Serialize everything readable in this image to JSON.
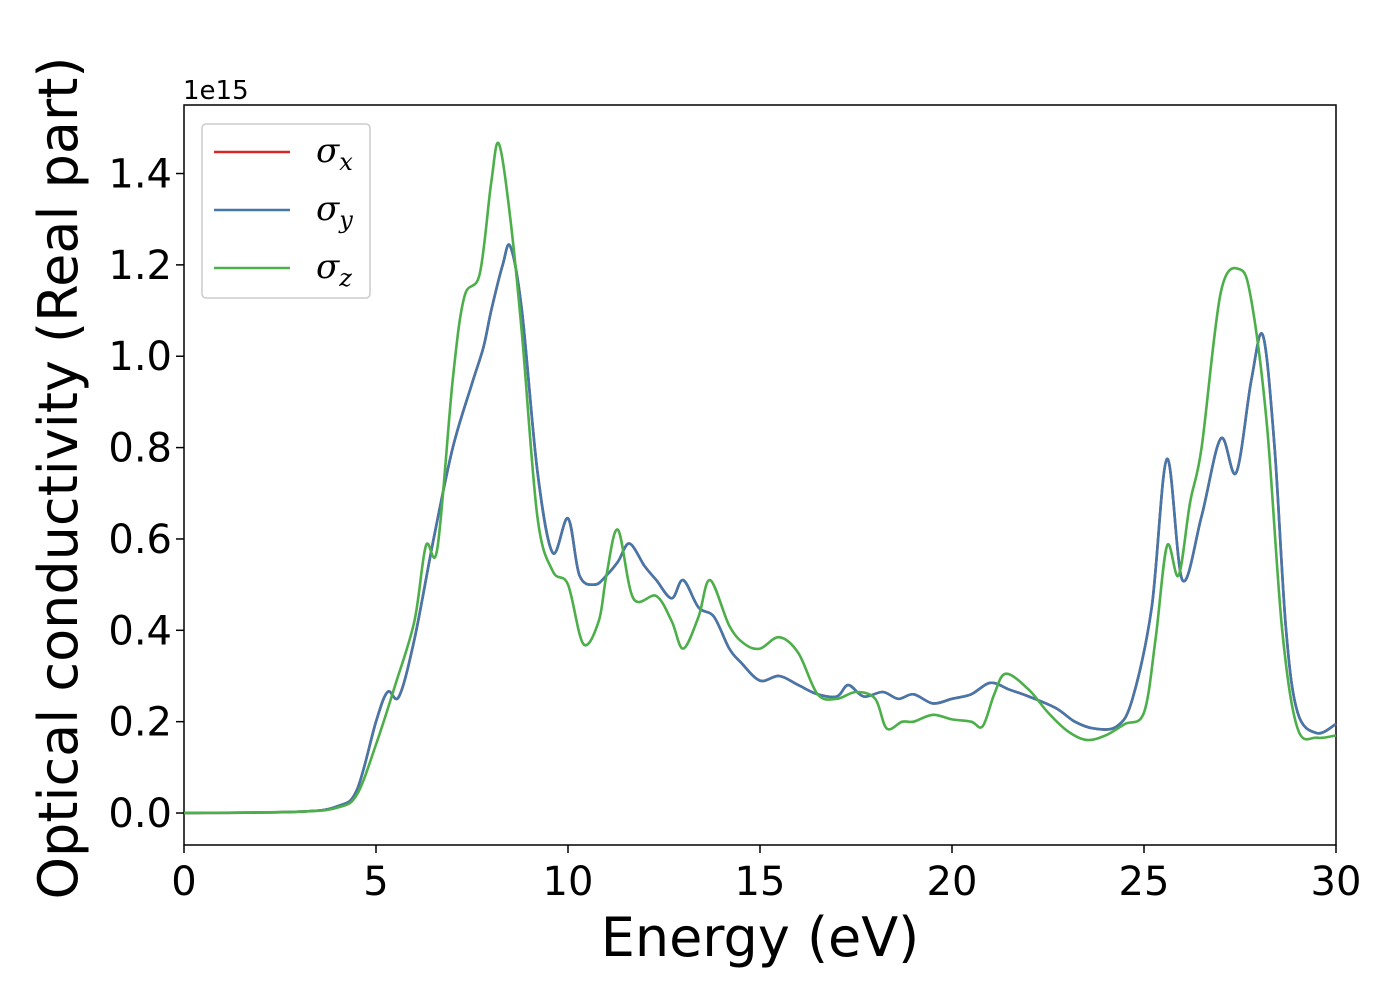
{
  "chart_data": {
    "type": "line",
    "xlabel": "Energy (eV)",
    "ylabel": "Optical conductivity (Real part)",
    "y_offset_label": "1e15",
    "xlim": [
      0,
      30
    ],
    "ylim": [
      -0.07,
      1.55
    ],
    "x_ticks": [
      0,
      5,
      10,
      15,
      20,
      25,
      30
    ],
    "y_ticks": [
      0.0,
      0.2,
      0.4,
      0.6,
      0.8,
      1.0,
      1.2,
      1.4
    ],
    "x_tick_labels": [
      "0",
      "5",
      "10",
      "15",
      "20",
      "25",
      "30"
    ],
    "y_tick_labels": [
      "0.0",
      "0.2",
      "0.4",
      "0.6",
      "0.8",
      "1.0",
      "1.2",
      "1.4"
    ],
    "grid": false,
    "legend_position": "top-left",
    "series": [
      {
        "name": "σ",
        "subscript": "x",
        "color": "#d62728",
        "points": [
          [
            0,
            0
          ],
          [
            3,
            0.003
          ],
          [
            4,
            0.015
          ],
          [
            4.5,
            0.05
          ],
          [
            5,
            0.2
          ],
          [
            5.3,
            0.265
          ],
          [
            5.6,
            0.255
          ],
          [
            6,
            0.38
          ],
          [
            6.5,
            0.6
          ],
          [
            7,
            0.8
          ],
          [
            7.5,
            0.94
          ],
          [
            7.8,
            1.02
          ],
          [
            8.0,
            1.1
          ],
          [
            8.3,
            1.2
          ],
          [
            8.5,
            1.24
          ],
          [
            8.8,
            1.1
          ],
          [
            9.2,
            0.75
          ],
          [
            9.6,
            0.57
          ],
          [
            10,
            0.645
          ],
          [
            10.3,
            0.52
          ],
          [
            10.7,
            0.5
          ],
          [
            11,
            0.52
          ],
          [
            11.3,
            0.55
          ],
          [
            11.6,
            0.59
          ],
          [
            12,
            0.54
          ],
          [
            12.3,
            0.51
          ],
          [
            12.7,
            0.47
          ],
          [
            13,
            0.51
          ],
          [
            13.4,
            0.45
          ],
          [
            13.8,
            0.43
          ],
          [
            14.2,
            0.36
          ],
          [
            14.5,
            0.33
          ],
          [
            15,
            0.29
          ],
          [
            15.5,
            0.3
          ],
          [
            16,
            0.28
          ],
          [
            16.5,
            0.26
          ],
          [
            17,
            0.255
          ],
          [
            17.3,
            0.28
          ],
          [
            17.7,
            0.255
          ],
          [
            18.2,
            0.265
          ],
          [
            18.6,
            0.25
          ],
          [
            19,
            0.26
          ],
          [
            19.5,
            0.24
          ],
          [
            20,
            0.25
          ],
          [
            20.5,
            0.26
          ],
          [
            21,
            0.285
          ],
          [
            21.5,
            0.27
          ],
          [
            22,
            0.255
          ],
          [
            22.7,
            0.23
          ],
          [
            23.2,
            0.2
          ],
          [
            23.7,
            0.185
          ],
          [
            24.3,
            0.19
          ],
          [
            24.7,
            0.25
          ],
          [
            25.2,
            0.45
          ],
          [
            25.6,
            0.775
          ],
          [
            26,
            0.51
          ],
          [
            26.5,
            0.65
          ],
          [
            27,
            0.82
          ],
          [
            27.4,
            0.745
          ],
          [
            27.8,
            0.95
          ],
          [
            28.1,
            1.045
          ],
          [
            28.4,
            0.8
          ],
          [
            28.7,
            0.4
          ],
          [
            29,
            0.22
          ],
          [
            29.5,
            0.175
          ],
          [
            30,
            0.195
          ]
        ]
      },
      {
        "name": "σ",
        "subscript": "y",
        "color": "#4477aa",
        "points": [
          [
            0,
            0
          ],
          [
            3,
            0.003
          ],
          [
            4,
            0.015
          ],
          [
            4.5,
            0.05
          ],
          [
            5,
            0.2
          ],
          [
            5.3,
            0.265
          ],
          [
            5.6,
            0.255
          ],
          [
            6,
            0.38
          ],
          [
            6.5,
            0.6
          ],
          [
            7,
            0.8
          ],
          [
            7.5,
            0.94
          ],
          [
            7.8,
            1.02
          ],
          [
            8.0,
            1.1
          ],
          [
            8.3,
            1.2
          ],
          [
            8.5,
            1.24
          ],
          [
            8.8,
            1.1
          ],
          [
            9.2,
            0.75
          ],
          [
            9.6,
            0.57
          ],
          [
            10,
            0.645
          ],
          [
            10.3,
            0.52
          ],
          [
            10.7,
            0.5
          ],
          [
            11,
            0.52
          ],
          [
            11.3,
            0.55
          ],
          [
            11.6,
            0.59
          ],
          [
            12,
            0.54
          ],
          [
            12.3,
            0.51
          ],
          [
            12.7,
            0.47
          ],
          [
            13,
            0.51
          ],
          [
            13.4,
            0.45
          ],
          [
            13.8,
            0.43
          ],
          [
            14.2,
            0.36
          ],
          [
            14.5,
            0.33
          ],
          [
            15,
            0.29
          ],
          [
            15.5,
            0.3
          ],
          [
            16,
            0.28
          ],
          [
            16.5,
            0.26
          ],
          [
            17,
            0.255
          ],
          [
            17.3,
            0.28
          ],
          [
            17.7,
            0.255
          ],
          [
            18.2,
            0.265
          ],
          [
            18.6,
            0.25
          ],
          [
            19,
            0.26
          ],
          [
            19.5,
            0.24
          ],
          [
            20,
            0.25
          ],
          [
            20.5,
            0.26
          ],
          [
            21,
            0.285
          ],
          [
            21.5,
            0.27
          ],
          [
            22,
            0.255
          ],
          [
            22.7,
            0.23
          ],
          [
            23.2,
            0.2
          ],
          [
            23.7,
            0.185
          ],
          [
            24.3,
            0.19
          ],
          [
            24.7,
            0.25
          ],
          [
            25.2,
            0.45
          ],
          [
            25.6,
            0.775
          ],
          [
            26,
            0.51
          ],
          [
            26.5,
            0.65
          ],
          [
            27,
            0.82
          ],
          [
            27.4,
            0.745
          ],
          [
            27.8,
            0.95
          ],
          [
            28.1,
            1.045
          ],
          [
            28.4,
            0.8
          ],
          [
            28.7,
            0.4
          ],
          [
            29,
            0.22
          ],
          [
            29.5,
            0.175
          ],
          [
            30,
            0.195
          ]
        ]
      },
      {
        "name": "σ",
        "subscript": "z",
        "color": "#4daf4a",
        "points": [
          [
            0,
            0
          ],
          [
            3,
            0.003
          ],
          [
            4,
            0.012
          ],
          [
            4.5,
            0.04
          ],
          [
            5,
            0.15
          ],
          [
            5.5,
            0.28
          ],
          [
            6,
            0.42
          ],
          [
            6.3,
            0.585
          ],
          [
            6.6,
            0.58
          ],
          [
            7,
            0.95
          ],
          [
            7.3,
            1.13
          ],
          [
            7.7,
            1.18
          ],
          [
            8.0,
            1.38
          ],
          [
            8.2,
            1.465
          ],
          [
            8.5,
            1.3
          ],
          [
            8.8,
            1.05
          ],
          [
            9.2,
            0.65
          ],
          [
            9.6,
            0.53
          ],
          [
            10,
            0.5
          ],
          [
            10.4,
            0.37
          ],
          [
            10.8,
            0.42
          ],
          [
            11,
            0.52
          ],
          [
            11.3,
            0.62
          ],
          [
            11.7,
            0.47
          ],
          [
            12.3,
            0.475
          ],
          [
            12.7,
            0.42
          ],
          [
            13,
            0.36
          ],
          [
            13.4,
            0.43
          ],
          [
            13.7,
            0.51
          ],
          [
            14.2,
            0.41
          ],
          [
            14.6,
            0.37
          ],
          [
            15,
            0.36
          ],
          [
            15.5,
            0.385
          ],
          [
            16,
            0.35
          ],
          [
            16.5,
            0.26
          ],
          [
            17,
            0.25
          ],
          [
            17.5,
            0.265
          ],
          [
            18,
            0.25
          ],
          [
            18.3,
            0.185
          ],
          [
            18.7,
            0.2
          ],
          [
            19,
            0.2
          ],
          [
            19.5,
            0.215
          ],
          [
            20,
            0.205
          ],
          [
            20.5,
            0.2
          ],
          [
            20.8,
            0.19
          ],
          [
            21.1,
            0.26
          ],
          [
            21.4,
            0.305
          ],
          [
            22,
            0.27
          ],
          [
            22.5,
            0.22
          ],
          [
            23,
            0.18
          ],
          [
            23.5,
            0.16
          ],
          [
            24,
            0.17
          ],
          [
            24.5,
            0.195
          ],
          [
            25,
            0.22
          ],
          [
            25.3,
            0.38
          ],
          [
            25.6,
            0.585
          ],
          [
            25.9,
            0.52
          ],
          [
            26.2,
            0.68
          ],
          [
            26.5,
            0.8
          ],
          [
            27,
            1.14
          ],
          [
            27.5,
            1.19
          ],
          [
            27.8,
            1.12
          ],
          [
            28.2,
            0.85
          ],
          [
            28.6,
            0.4
          ],
          [
            29,
            0.185
          ],
          [
            29.5,
            0.165
          ],
          [
            30,
            0.17
          ]
        ]
      }
    ]
  }
}
